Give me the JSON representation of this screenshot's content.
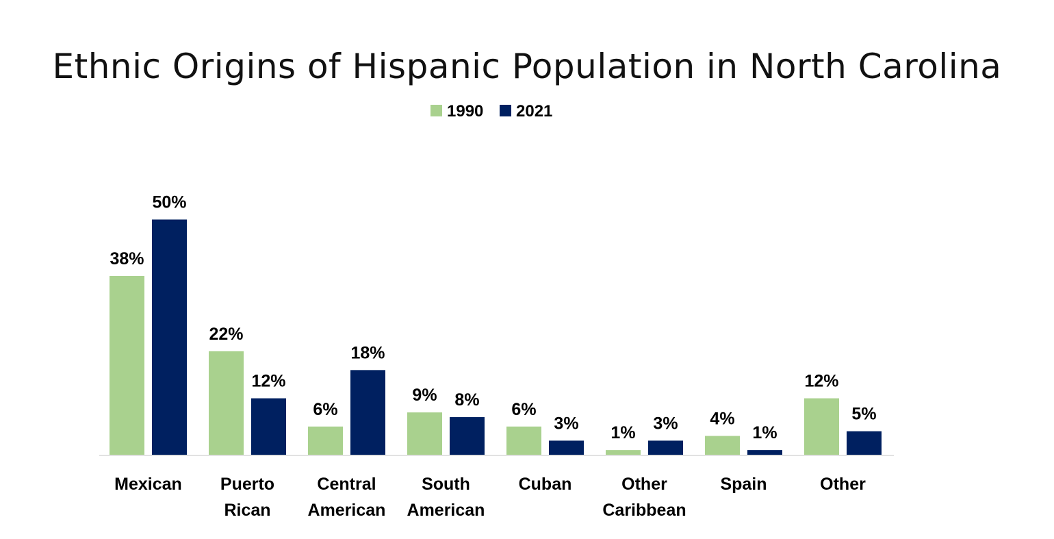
{
  "chart_data": {
    "type": "bar",
    "title": "Ethnic Origins of Hispanic Population in North Carolina",
    "xlabel": "",
    "ylabel": "",
    "ylim": [
      0,
      50
    ],
    "grid": false,
    "legend_position": "top-center",
    "value_suffix": "%",
    "categories": [
      [
        "Mexican"
      ],
      [
        "Puerto",
        "Rican"
      ],
      [
        "Central",
        "American"
      ],
      [
        "South",
        "American"
      ],
      [
        "Cuban"
      ],
      [
        "Other",
        "Caribbean"
      ],
      [
        "Spain"
      ],
      [
        "Other"
      ]
    ],
    "series": [
      {
        "name": "1990",
        "color": "#A9D18E",
        "values": [
          38,
          22,
          6,
          9,
          6,
          1,
          4,
          12
        ]
      },
      {
        "name": "2021",
        "color": "#002060",
        "values": [
          50,
          12,
          18,
          8,
          3,
          3,
          1,
          5
        ]
      }
    ]
  }
}
